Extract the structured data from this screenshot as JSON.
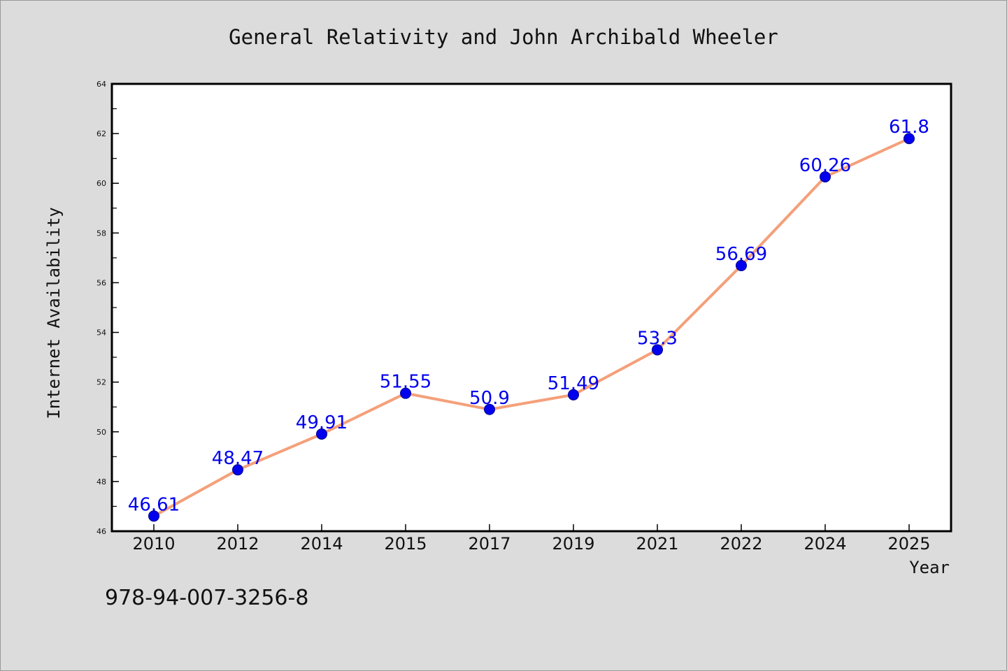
{
  "chart_data": {
    "type": "line",
    "title": "General Relativity and John Archibald Wheeler",
    "xlabel": "Year",
    "ylabel": "Internet Availability",
    "categories": [
      "2010",
      "2012",
      "2014",
      "2015",
      "2017",
      "2019",
      "2021",
      "2022",
      "2024",
      "2025"
    ],
    "values": [
      46.61,
      48.47,
      49.91,
      51.55,
      50.9,
      51.49,
      53.3,
      56.69,
      60.26,
      61.8
    ],
    "value_labels": [
      "46.61",
      "48.47",
      "49.91",
      "51.55",
      "50.9",
      "51.49",
      "53.3",
      "56.69",
      "60.26",
      "61.8"
    ],
    "ylim": [
      46,
      64
    ],
    "yticks": [
      "46",
      "48",
      "50",
      "52",
      "54",
      "56",
      "58",
      "60",
      "62",
      "64"
    ],
    "grid": false,
    "legend": "none",
    "line_color": "#f4a07a",
    "marker_color": "#0000ee",
    "label_color": "#0000ee"
  },
  "footer": {
    "isbn": "978-94-007-3256-8"
  }
}
